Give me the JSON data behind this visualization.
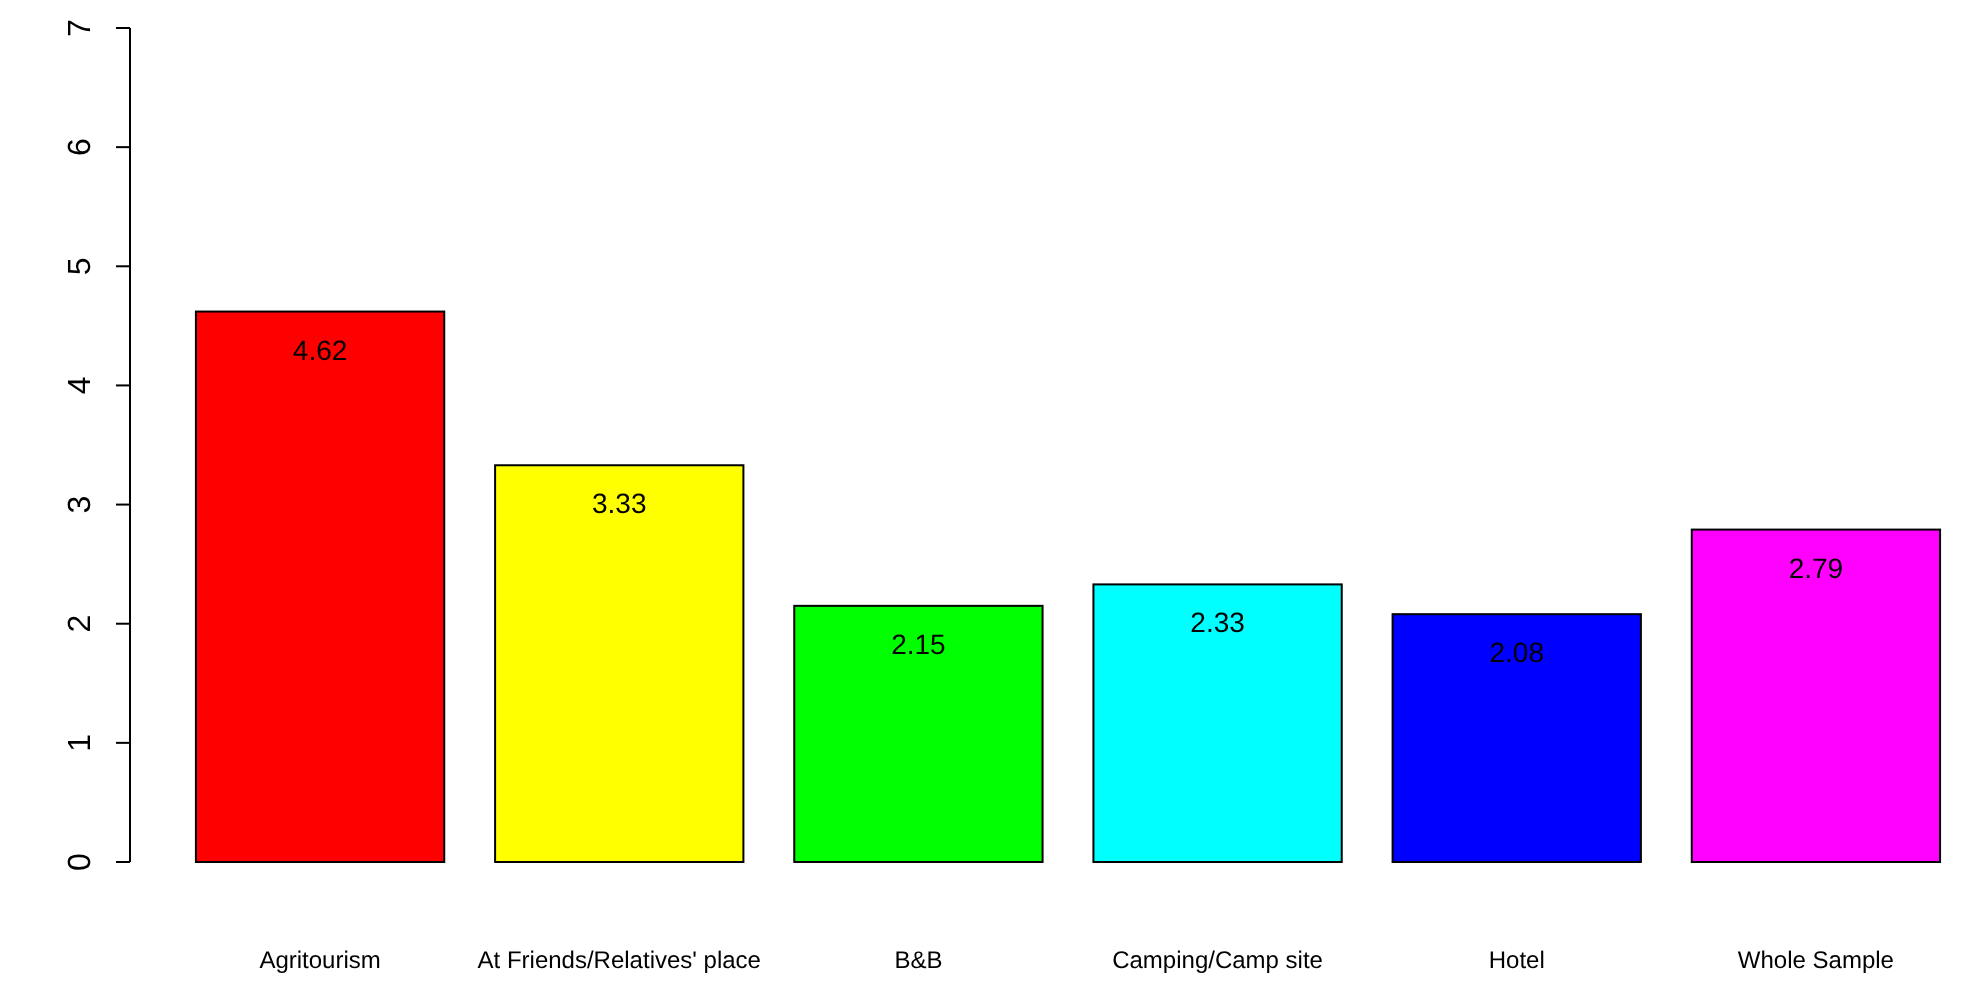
{
  "chart_data": {
    "type": "bar",
    "categories": [
      "Agritourism",
      "At Friends/Relatives' place",
      "B&B",
      "Camping/Camp site",
      "Hotel",
      "Whole Sample"
    ],
    "values": [
      4.62,
      3.33,
      2.15,
      2.33,
      2.08,
      2.79
    ],
    "colors": [
      "#ff0000",
      "#ffff00",
      "#00ff00",
      "#00ffff",
      "#0000ff",
      "#ff00ff"
    ],
    "ylim": [
      0,
      7
    ],
    "yticks": [
      0,
      1,
      2,
      3,
      4,
      5,
      6,
      7
    ],
    "data_labels": true
  }
}
